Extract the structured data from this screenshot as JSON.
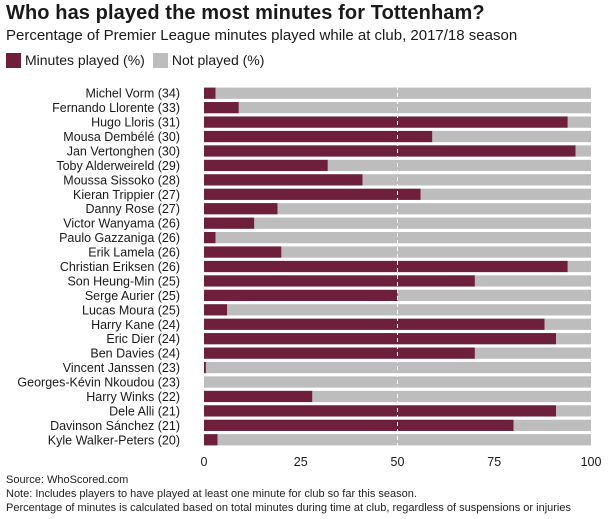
{
  "title": "Who has played the most minutes for Tottenham?",
  "subtitle": "Percentage of Premier League minutes played while at club, 2017/18 season",
  "legend": {
    "played_label": "Minutes played (%)",
    "not_played_label": "Not played (%)"
  },
  "colors": {
    "played": "#6d1f3b",
    "not_played": "#bdbdbd",
    "refline": "#ffffff"
  },
  "footer": {
    "source": "Source: WhoScored.com",
    "note": "Note: Includes players to have played at least one minute for club so far this season.",
    "method": "Percentage of minutes is calculated based on total minutes during time at club, regardless of suspensions or injuries"
  },
  "chart_data": {
    "type": "bar",
    "orientation": "horizontal",
    "stacked": true,
    "xlim": [
      0,
      100
    ],
    "xticks": [
      "0",
      "25",
      "50",
      "75",
      "100"
    ],
    "reference_line": 50,
    "grid": false,
    "legend_position": "top-left",
    "categories": [
      "Michel Vorm (34)",
      "Fernando Llorente (33)",
      "Hugo Lloris (31)",
      "Mousa Dembélé (30)",
      "Jan Vertonghen (30)",
      "Toby Alderweireld (29)",
      "Moussa Sissoko (28)",
      "Kieran Trippier (27)",
      "Danny Rose (27)",
      "Victor Wanyama (26)",
      "Paulo Gazzaniga (26)",
      "Erik Lamela (26)",
      "Christian Eriksen (26)",
      "Son Heung-Min (25)",
      "Serge Aurier (25)",
      "Lucas Moura (25)",
      "Harry Kane (24)",
      "Eric Dier (24)",
      "Ben Davies (24)",
      "Vincent Janssen (23)",
      "Georges-Kévin Nkoudou (23)",
      "Harry Winks (22)",
      "Dele Alli (21)",
      "Davinson Sánchez (21)",
      "Kyle Walker-Peters (20)"
    ],
    "series": [
      {
        "name": "Minutes played (%)",
        "values": [
          3,
          9,
          94,
          59,
          96,
          32,
          41,
          56,
          19,
          13,
          3,
          20,
          94,
          70,
          50,
          6,
          88,
          91,
          70,
          0.5,
          0,
          28,
          91,
          80,
          3.5
        ]
      },
      {
        "name": "Not played (%)",
        "values": [
          97,
          91,
          6,
          41,
          4,
          68,
          59,
          44,
          81,
          87,
          97,
          80,
          6,
          30,
          50,
          94,
          12,
          9,
          30,
          99.5,
          100,
          72,
          9,
          20,
          96.5
        ]
      }
    ]
  }
}
